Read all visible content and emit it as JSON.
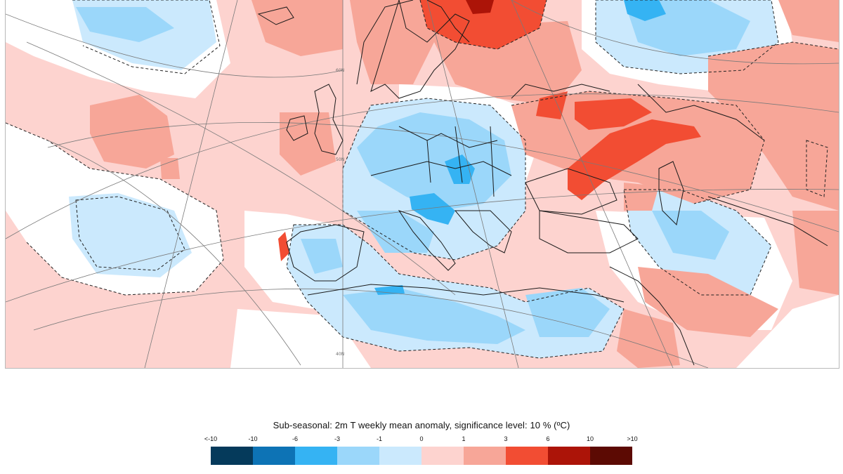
{
  "map": {
    "lat_labels": [
      "60N",
      "50N",
      "40N"
    ],
    "colors": {
      "land_outline": "#1a1a1a",
      "graticule": "#7a7a7a",
      "neutral": "#ffffff"
    }
  },
  "legend": {
    "title": "Sub-seasonal: 2m T weekly mean anomaly, significance level: 10 % (ºC)",
    "tick_labels": [
      "<-10",
      "-10",
      "-6",
      "-3",
      "-1",
      "0",
      "1",
      "3",
      "6",
      "10",
      ">10"
    ],
    "colors": [
      "#053a5b",
      "#0d73b5",
      "#35b3f3",
      "#9bd7fa",
      "#cbe9fd",
      "#fdd3cf",
      "#f7a698",
      "#f24d33",
      "#ac1408",
      "#5c0a03"
    ]
  }
}
